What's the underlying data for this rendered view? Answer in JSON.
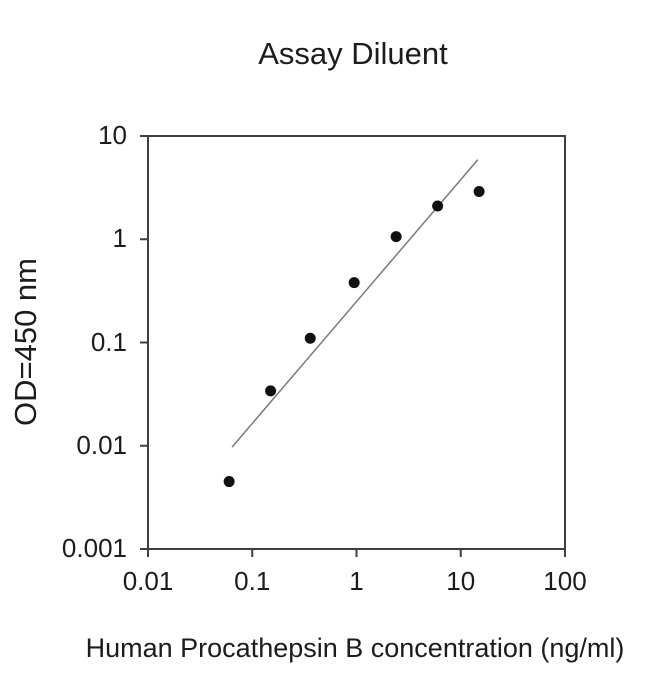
{
  "chart_data": {
    "type": "scatter",
    "title": "Assay Diluent",
    "xlabel": "Human Procathepsin B concentration (ng/ml)",
    "ylabel": "OD=450 nm",
    "xscale": "log",
    "yscale": "log",
    "xlim": [
      0.01,
      100
    ],
    "ylim": [
      0.001,
      10
    ],
    "x_tick_labels": [
      "0.01",
      "0.1",
      "1",
      "10",
      "100"
    ],
    "y_tick_labels": [
      "10",
      "1",
      "0.1",
      "0.01",
      "0.001"
    ],
    "grid": false,
    "legend": "none",
    "series": [
      {
        "name": "standard-curve-points",
        "marker": "filled-circle",
        "color": "#111111",
        "points": [
          {
            "x": 0.06,
            "y": 0.0045
          },
          {
            "x": 0.15,
            "y": 0.034
          },
          {
            "x": 0.36,
            "y": 0.11
          },
          {
            "x": 0.95,
            "y": 0.38
          },
          {
            "x": 2.4,
            "y": 1.06
          },
          {
            "x": 6,
            "y": 2.1
          },
          {
            "x": 15,
            "y": 2.9
          }
        ]
      }
    ],
    "fit_line": {
      "x1": 0.064,
      "y1": 0.0097,
      "x2": 14.6,
      "y2": 5.9,
      "color": "#7a7a7a"
    },
    "axis_color": "#3f3f3f",
    "text_color": "#1c1c1c",
    "marker_radius_px": 5.5
  }
}
